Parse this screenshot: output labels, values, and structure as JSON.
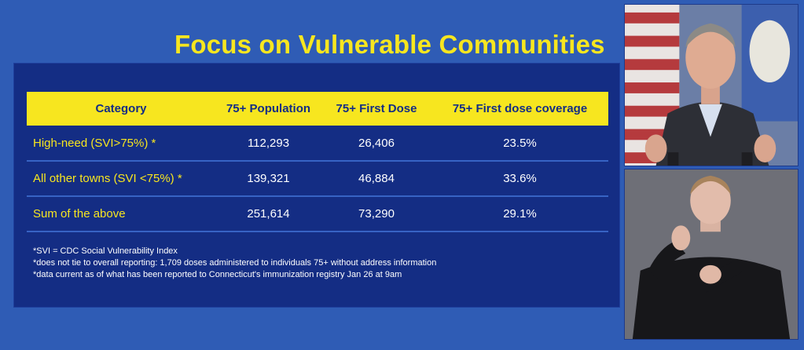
{
  "slide": {
    "title": "Focus on Vulnerable Communities",
    "colors": {
      "background": "#2f5cb5",
      "panel": "#142d84",
      "accent": "#f7e61f"
    }
  },
  "table": {
    "headers": [
      "Category",
      "75+ Population",
      "75+ First Dose",
      "75+ First dose coverage"
    ],
    "rows": [
      {
        "category": "High-need (SVI>75%) *",
        "population": "112,293",
        "first_dose": "26,406",
        "coverage": "23.5%"
      },
      {
        "category": "All other towns (SVI <75%) *",
        "population": "139,321",
        "first_dose": "46,884",
        "coverage": "33.6%"
      },
      {
        "category": "Sum of the above",
        "population": "251,614",
        "first_dose": "73,290",
        "coverage": "29.1%"
      }
    ]
  },
  "footnotes": [
    "*SVI = CDC Social Vulnerability Index",
    "*does not tie to overall reporting: 1,709 doses administered to individuals 75+ without address information",
    "*data current as of what has been reported to Connecticut's immunization registry Jan 26 at 9am"
  ],
  "video_feeds": {
    "speaker": {
      "icon": "speaker-video"
    },
    "interpreter": {
      "icon": "sign-language-interpreter-video"
    }
  }
}
